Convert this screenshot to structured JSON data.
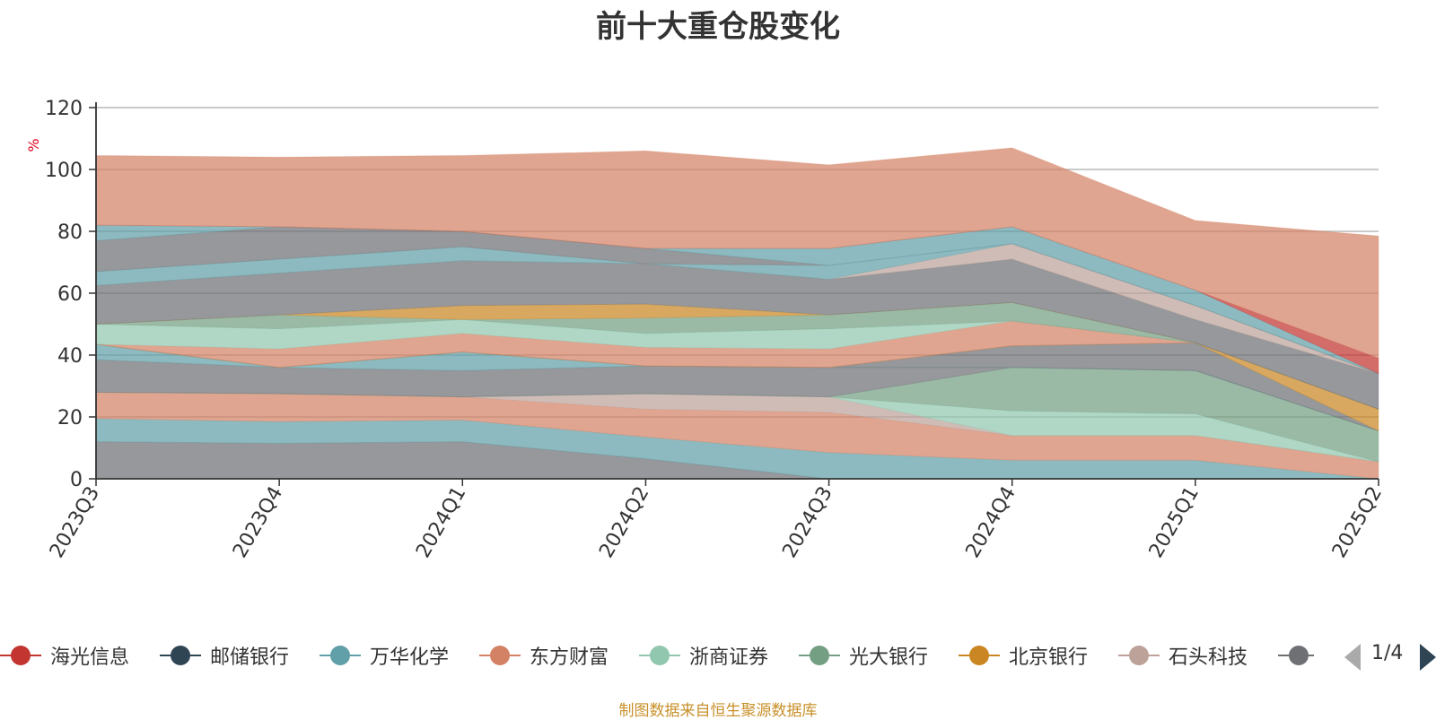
{
  "colors": {
    "text": "#333333",
    "axis": "#333333",
    "grid": "#aaaaaa",
    "unit": "#e0001b",
    "source": "#c8902a"
  },
  "legend": {
    "items": [
      {
        "label": "海光信息",
        "color": "#c23531"
      },
      {
        "label": "邮储银行",
        "color": "#2f4554"
      },
      {
        "label": "万华化学",
        "color": "#61a0a8"
      },
      {
        "label": "东方财富",
        "color": "#d48265"
      },
      {
        "label": "浙商证券",
        "color": "#91c7ae"
      },
      {
        "label": "光大银行",
        "color": "#749f83"
      },
      {
        "label": "北京银行",
        "color": "#ca8622"
      },
      {
        "label": "石头科技",
        "color": "#bda29a"
      },
      {
        "label": "",
        "color": "#6e7074"
      }
    ],
    "page_indicator": "1/4"
  },
  "source_note": "制图数据来自恒生聚源数据库",
  "chart_data": {
    "type": "area",
    "title": "前十大重仓股变化",
    "ylabel": "%",
    "xlabel": "",
    "ylim": [
      0,
      120
    ],
    "yticks": [
      0,
      20,
      40,
      60,
      80,
      100,
      120
    ],
    "grid": true,
    "legend_position": "bottom",
    "categories": [
      "2023Q3",
      "2023Q4",
      "2024Q1",
      "2024Q2",
      "2024Q3",
      "2024Q4",
      "2025Q1",
      "2025Q2"
    ],
    "series": [
      {
        "name": "",
        "color": "#6e7074",
        "values": [
          12,
          11.5,
          12,
          6.5,
          0,
          0,
          0,
          0
        ]
      },
      {
        "name": "",
        "color": "#61a0a8",
        "values": [
          7.5,
          7,
          7,
          7,
          8.5,
          6,
          6,
          0
        ]
      },
      {
        "name": "",
        "color": "#d48265",
        "values": [
          8.5,
          9,
          7.5,
          9,
          13,
          8,
          8,
          5.5
        ]
      },
      {
        "name": "",
        "color": "#bda29a",
        "values": [
          0,
          0,
          0,
          5,
          5,
          0,
          0,
          0
        ]
      },
      {
        "name": "",
        "color": "#91c7ae",
        "values": [
          0,
          0,
          0,
          0,
          0,
          8,
          7,
          0
        ]
      },
      {
        "name": "",
        "color": "#749f83",
        "values": [
          0,
          0,
          0,
          0,
          0,
          14,
          14,
          10
        ]
      },
      {
        "name": "",
        "color": "#6e7074",
        "values": [
          10.5,
          8.5,
          8.5,
          9,
          9.5,
          0,
          0,
          0
        ]
      },
      {
        "name": "",
        "color": "#61a0a8",
        "values": [
          5,
          0,
          6,
          0,
          0,
          0,
          0,
          0
        ]
      },
      {
        "name": "",
        "color": "#6e7074",
        "values": [
          0,
          0,
          0,
          0,
          0,
          7,
          9,
          0
        ]
      },
      {
        "name": "",
        "color": "#ca8622",
        "values": [
          0,
          0,
          0,
          0,
          0,
          0,
          0,
          7
        ]
      },
      {
        "name": "",
        "color": "#d48265",
        "values": [
          0,
          6,
          6,
          6,
          6,
          8,
          0,
          0
        ]
      },
      {
        "name": "",
        "color": "#91c7ae",
        "values": [
          6.5,
          6.5,
          4.5,
          4.5,
          6.5,
          0,
          0,
          0
        ]
      },
      {
        "name": "",
        "color": "#749f83",
        "values": [
          0,
          4.5,
          0,
          5,
          4.5,
          6,
          0,
          0
        ]
      },
      {
        "name": "",
        "color": "#ca8622",
        "values": [
          0,
          0,
          4.5,
          4.5,
          0,
          0,
          0,
          0
        ]
      },
      {
        "name": "",
        "color": "#6e7074",
        "values": [
          12.5,
          13.5,
          14.5,
          13,
          11.5,
          14,
          7.5,
          11.5
        ]
      },
      {
        "name": "",
        "color": "#bda29a",
        "values": [
          0,
          0,
          0,
          0,
          0,
          5,
          4.5,
          0
        ]
      },
      {
        "name": "",
        "color": "#61a0a8",
        "values": [
          4.5,
          4.5,
          4.5,
          0,
          4.5,
          0,
          0,
          0
        ]
      },
      {
        "name": "",
        "color": "#6e7074",
        "values": [
          10,
          10.5,
          5,
          5,
          0,
          0,
          0,
          0
        ]
      },
      {
        "name": "",
        "color": "#61a0a8",
        "values": [
          5,
          0,
          0,
          0,
          5.5,
          5.5,
          5,
          0
        ]
      },
      {
        "name": "",
        "color": "#c23531",
        "values": [
          0,
          0,
          0,
          0,
          0,
          0,
          0,
          5
        ]
      },
      {
        "name": "",
        "color": "#d48265",
        "values": [
          22.5,
          22.5,
          24.5,
          31.5,
          27,
          25.5,
          22.5,
          39.5
        ]
      }
    ]
  }
}
